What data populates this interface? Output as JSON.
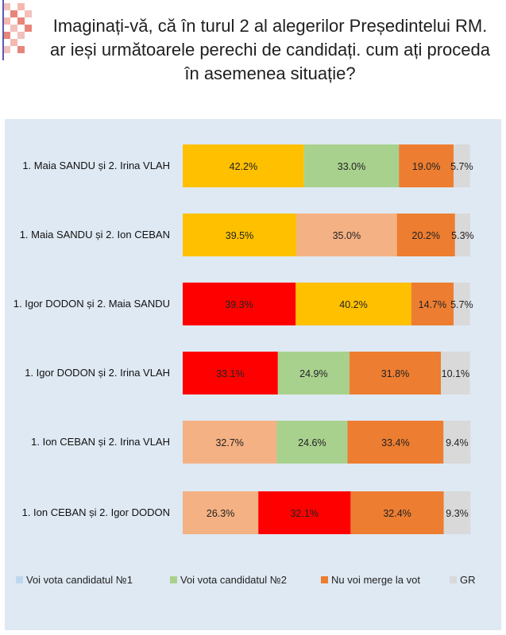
{
  "title": "Imaginați-vă, că în turul 2 al alegerilor Președintelui RM.  ar ieși următoarele perechi de candidați. cum ați proceda în asemenea situație?",
  "chart_data": {
    "type": "bar",
    "orientation": "horizontal",
    "stacked": true,
    "categories": [
      "1. Maia SANDU și 2. Irina VLAH",
      "1. Maia SANDU și 2. Ion CEBAN",
      "1. Igor DODON și 2. Maia SANDU",
      "1. Igor DODON și 2. Irina VLAH",
      "1. Ion CEBAN și 2. Irina VLAH",
      "1. Ion CEBAN și 2. Igor DODON"
    ],
    "segments": [
      [
        {
          "value": 42.2,
          "label": "42.2%",
          "color": "#ffc000"
        },
        {
          "value": 33.0,
          "label": "33.0%",
          "color": "#a9d18e"
        },
        {
          "value": 19.0,
          "label": "19.0%",
          "color": "#ed7d31"
        },
        {
          "value": 5.7,
          "label": "5.7%",
          "color": "#d9d9d9"
        }
      ],
      [
        {
          "value": 39.5,
          "label": "39.5%",
          "color": "#ffc000"
        },
        {
          "value": 35.0,
          "label": "35.0%",
          "color": "#f4b183"
        },
        {
          "value": 20.2,
          "label": "20.2%",
          "color": "#ed7d31"
        },
        {
          "value": 5.3,
          "label": "5.3%",
          "color": "#d9d9d9"
        }
      ],
      [
        {
          "value": 39.3,
          "label": "39.3%",
          "color": "#ff0000"
        },
        {
          "value": 40.2,
          "label": "40.2%",
          "color": "#ffc000"
        },
        {
          "value": 14.7,
          "label": "14.7%",
          "color": "#ed7d31"
        },
        {
          "value": 5.7,
          "label": "5.7%",
          "color": "#d9d9d9"
        }
      ],
      [
        {
          "value": 33.1,
          "label": "33.1%",
          "color": "#ff0000"
        },
        {
          "value": 24.9,
          "label": "24.9%",
          "color": "#a9d18e"
        },
        {
          "value": 31.8,
          "label": "31.8%",
          "color": "#ed7d31"
        },
        {
          "value": 10.1,
          "label": "10.1%",
          "color": "#d9d9d9"
        }
      ],
      [
        {
          "value": 32.7,
          "label": "32.7%",
          "color": "#f4b183"
        },
        {
          "value": 24.6,
          "label": "24.6%",
          "color": "#a9d18e"
        },
        {
          "value": 33.4,
          "label": "33.4%",
          "color": "#ed7d31"
        },
        {
          "value": 9.4,
          "label": "9.4%",
          "color": "#d9d9d9"
        }
      ],
      [
        {
          "value": 26.3,
          "label": "26.3%",
          "color": "#f4b183"
        },
        {
          "value": 32.1,
          "label": "32.1%",
          "color": "#ff0000"
        },
        {
          "value": 32.4,
          "label": "32.4%",
          "color": "#ed7d31"
        },
        {
          "value": 9.3,
          "label": "9.3%",
          "color": "#d9d9d9"
        }
      ]
    ],
    "legend": [
      {
        "name": "Voi vota candidatul  №1",
        "color": "#bdd7ee"
      },
      {
        "name": "Voi vota candidatul  №2",
        "color": "#a9d18e"
      },
      {
        "name": "Nu voi merge la vot",
        "color": "#ed7d31"
      },
      {
        "name": "GR",
        "color": "#d9d9d9"
      }
    ],
    "legend_position": "bottom",
    "xlim": [
      0,
      100
    ],
    "grid": false
  }
}
